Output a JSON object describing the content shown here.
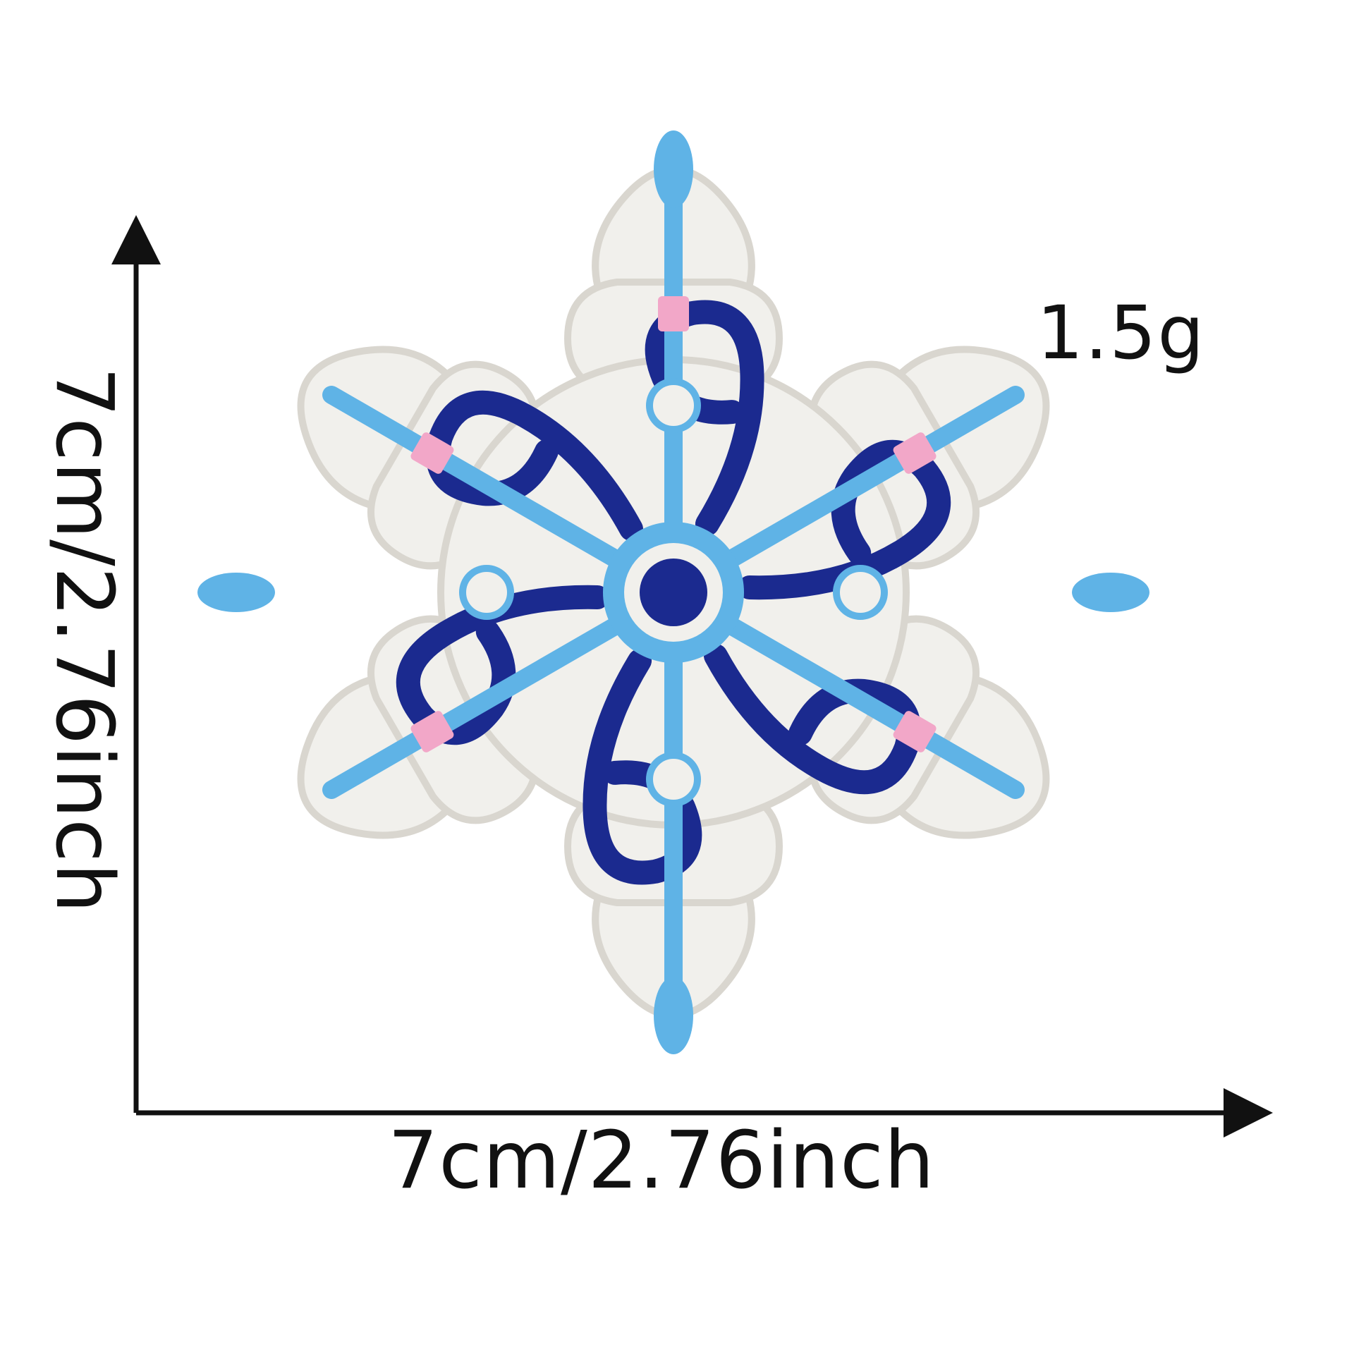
{
  "product": {
    "weight": "1.5g",
    "width_dimension": "7cm/2.76inch",
    "height_dimension": "7cm/2.76inch"
  },
  "colors": {
    "background": "#ffffff",
    "patch_white": "#f1f0ec",
    "patch_edge": "#d9d6cf",
    "navy": "#1b2a8f",
    "light_blue": "#5fb3e6",
    "pink": "#f2a7c8",
    "text": "#111111"
  }
}
